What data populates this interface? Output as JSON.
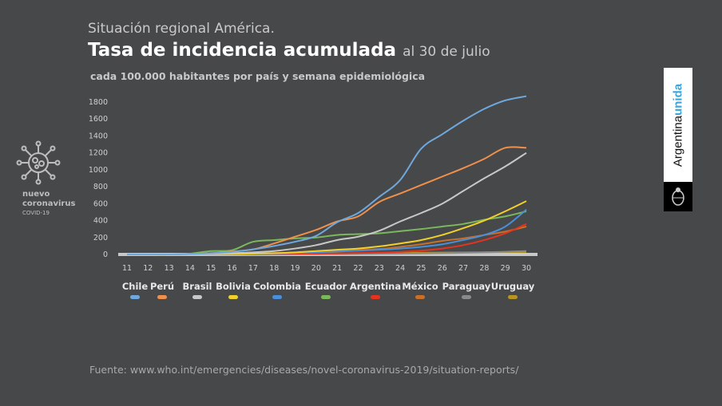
{
  "header": {
    "supertitle": "Situación regional América.",
    "title": "Tasa de incidencia acumulada",
    "date": "al 30 de julio",
    "subtitle": "cada 100.000 habitantes por país y semana epidemiológica"
  },
  "logo": {
    "line1": "nuevo",
    "line2": "coronavirus",
    "line3": "COVID-19"
  },
  "brand": {
    "word1": "Argentina",
    "word2": "unida",
    "accent": "#3aa6dc"
  },
  "source": "Fuente: www.who.int/emergencies/diseases/novel-coronavirus-2019/situation-reports/",
  "chart_data": {
    "type": "line",
    "x": [
      11,
      12,
      13,
      14,
      15,
      16,
      17,
      18,
      19,
      20,
      21,
      22,
      23,
      24,
      25,
      26,
      27,
      28,
      29,
      30
    ],
    "yticks": [
      0,
      200,
      400,
      600,
      800,
      1000,
      1200,
      1400,
      1600,
      1800
    ],
    "ylim": [
      0,
      1800
    ],
    "legend_position": "bottom",
    "grid": false,
    "series": [
      {
        "name": "Chile",
        "color": "#6fa8dc",
        "values": [
          0,
          0,
          0,
          5,
          15,
          30,
          60,
          100,
          150,
          220,
          380,
          490,
          680,
          880,
          1250,
          1420,
          1580,
          1720,
          1820,
          1870
        ]
      },
      {
        "name": "Perú",
        "color": "#f0904a",
        "values": [
          0,
          0,
          0,
          5,
          15,
          35,
          60,
          130,
          210,
          290,
          390,
          450,
          620,
          720,
          820,
          920,
          1020,
          1130,
          1260,
          1260
        ]
      },
      {
        "name": "Brasil",
        "color": "#c8c8c8",
        "values": [
          0,
          0,
          0,
          2,
          8,
          15,
          25,
          40,
          70,
          110,
          170,
          210,
          280,
          390,
          490,
          600,
          750,
          900,
          1040,
          1200
        ]
      },
      {
        "name": "Bolivia",
        "color": "#f2d02a",
        "values": [
          0,
          0,
          0,
          0,
          2,
          5,
          10,
          15,
          25,
          40,
          55,
          70,
          95,
          130,
          170,
          230,
          310,
          400,
          510,
          630
        ]
      },
      {
        "name": "Colombia",
        "color": "#4a8fd9",
        "values": [
          0,
          0,
          0,
          0,
          2,
          5,
          8,
          12,
          18,
          25,
          35,
          45,
          55,
          70,
          90,
          120,
          170,
          230,
          330,
          530
        ]
      },
      {
        "name": "Ecuador",
        "color": "#7ab85a",
        "values": [
          0,
          0,
          0,
          10,
          40,
          50,
          150,
          170,
          190,
          200,
          230,
          240,
          250,
          275,
          300,
          330,
          360,
          410,
          450,
          510
        ]
      },
      {
        "name": "Argentina",
        "color": "#e6331f",
        "values": [
          0,
          0,
          0,
          0,
          0,
          2,
          4,
          6,
          8,
          10,
          12,
          16,
          22,
          30,
          45,
          70,
          110,
          170,
          250,
          360
        ]
      },
      {
        "name": "México",
        "color": "#c8702a",
        "values": [
          0,
          0,
          0,
          0,
          2,
          4,
          8,
          15,
          22,
          30,
          40,
          55,
          65,
          90,
          120,
          160,
          190,
          230,
          270,
          330
        ]
      },
      {
        "name": "Paraguay",
        "color": "#8a8a8a",
        "values": [
          0,
          0,
          0,
          0,
          0,
          1,
          1,
          2,
          3,
          4,
          5,
          6,
          8,
          10,
          12,
          15,
          20,
          25,
          32,
          40
        ]
      },
      {
        "name": "Uruguay",
        "color": "#b8961e",
        "values": [
          0,
          0,
          0,
          0,
          2,
          4,
          6,
          8,
          10,
          12,
          14,
          15,
          17,
          18,
          20,
          22,
          24,
          26,
          28,
          30
        ]
      }
    ]
  }
}
